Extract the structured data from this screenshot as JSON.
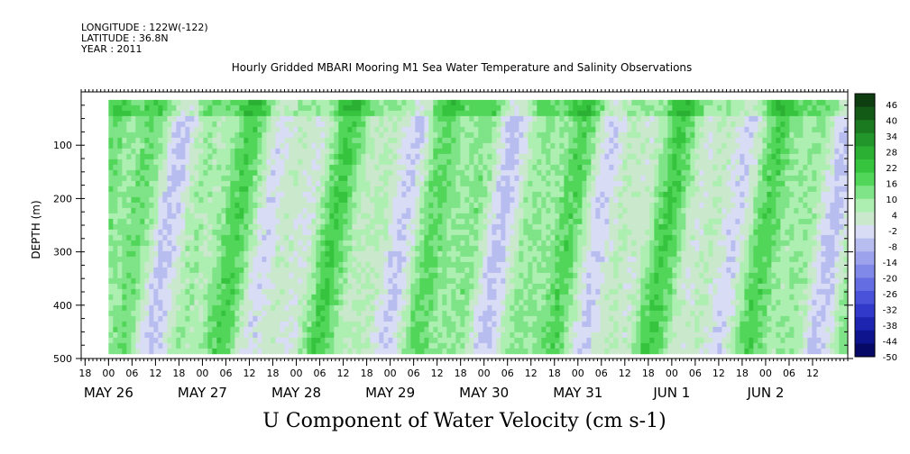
{
  "header": {
    "longitude": "LONGITUDE : 122W(-122)",
    "latitude": "LATITUDE : 36.8N",
    "year": "YEAR : 2011"
  },
  "chart_data": {
    "type": "heatmap",
    "title": "Hourly Gridded MBARI Mooring M1 Sea Water Temperature and Salinity Observations",
    "xlabel": "U Component of Water Velocity (cm s-1)",
    "ylabel": "DEPTH (m)",
    "y_ticks": [
      100,
      200,
      300,
      400,
      500
    ],
    "ylim": [
      500,
      0
    ],
    "y_inverted": true,
    "time_range": [
      "2011-05-25T17:00",
      "2011-06-02T21:00"
    ],
    "data_start": "2011-05-26T00:00",
    "x_hour_ticks": [
      "18",
      "00",
      "06",
      "12",
      "18",
      "00",
      "06",
      "12",
      "18",
      "00",
      "06",
      "12",
      "18",
      "00",
      "06",
      "12",
      "18",
      "00",
      "06",
      "12",
      "18",
      "00",
      "06",
      "12",
      "18",
      "00",
      "06",
      "12",
      "18",
      "00",
      "06",
      "12"
    ],
    "x_date_labels": [
      "MAY 26",
      "MAY 27",
      "MAY 28",
      "MAY 29",
      "MAY 30",
      "MAY 31",
      "JUN  1",
      "JUN  2"
    ],
    "colorbar": {
      "labels": [
        "46",
        "40",
        "34",
        "28",
        "22",
        "16",
        "10",
        "4",
        "-2",
        "-8",
        "-14",
        "-20",
        "-26",
        "-32",
        "-38",
        "-44",
        "-50"
      ],
      "colors": [
        "#0e3d12",
        "#135a17",
        "#1b7a1f",
        "#22962a",
        "#2bb033",
        "#36c43f",
        "#52d65a",
        "#7fe387",
        "#acefb0",
        "#c9e8cc",
        "#d8dcf4",
        "#b8bdf0",
        "#9ca2ec",
        "#8088e8",
        "#656de2",
        "#4a52d9",
        "#3039c9",
        "#1c24b0",
        "#0e148e",
        "#060a66"
      ]
    },
    "colorscale_values": [
      46,
      40,
      34,
      28,
      22,
      16,
      10,
      4,
      -2,
      -8,
      -14,
      -20,
      -26,
      -32,
      -38,
      -44,
      -50
    ],
    "missing_regions_note_color": "#ffffff"
  }
}
